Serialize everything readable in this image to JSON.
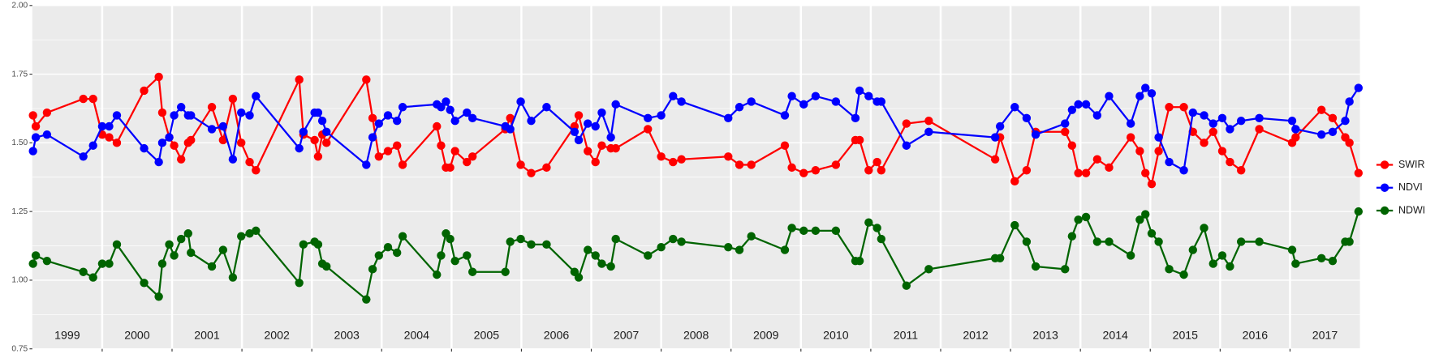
{
  "chart_data": {
    "type": "line",
    "xlim": [
      1999,
      2018
    ],
    "ylim": [
      0.75,
      2.0
    ],
    "yticks": [
      {
        "value": 0.75,
        "label": "0.75"
      },
      {
        "value": 1.0,
        "label": "1.00"
      },
      {
        "value": 1.25,
        "label": "1.25"
      },
      {
        "value": 1.5,
        "label": "1.50"
      },
      {
        "value": 1.75,
        "label": "1.75"
      },
      {
        "value": 2.0,
        "label": "2.00"
      }
    ],
    "xticks": [
      {
        "value": 1999.5,
        "label": "1999"
      },
      {
        "value": 2000.5,
        "label": "2000"
      },
      {
        "value": 2001.5,
        "label": "2001"
      },
      {
        "value": 2002.5,
        "label": "2002"
      },
      {
        "value": 2003.5,
        "label": "2003"
      },
      {
        "value": 2004.5,
        "label": "2004"
      },
      {
        "value": 2005.5,
        "label": "2005"
      },
      {
        "value": 2006.5,
        "label": "2006"
      },
      {
        "value": 2007.5,
        "label": "2007"
      },
      {
        "value": 2008.5,
        "label": "2008"
      },
      {
        "value": 2009.5,
        "label": "2009"
      },
      {
        "value": 2010.5,
        "label": "2010"
      },
      {
        "value": 2011.5,
        "label": "2011"
      },
      {
        "value": 2012.5,
        "label": "2012"
      },
      {
        "value": 2013.5,
        "label": "2013"
      },
      {
        "value": 2014.5,
        "label": "2014"
      },
      {
        "value": 2015.5,
        "label": "2015"
      },
      {
        "value": 2016.5,
        "label": "2016"
      },
      {
        "value": 2017.5,
        "label": "2017"
      }
    ],
    "x_gridlines": [
      2000,
      2001,
      2002,
      2003,
      2004,
      2005,
      2006,
      2007,
      2008,
      2009,
      2010,
      2011,
      2012,
      2013,
      2014,
      2015,
      2016,
      2017
    ],
    "grid": true,
    "legend": "right",
    "x": [
      1999.01,
      1999.05,
      1999.21,
      1999.73,
      1999.87,
      2000.0,
      2000.1,
      2000.21,
      2000.6,
      2000.81,
      2000.86,
      2000.96,
      2001.03,
      2001.13,
      2001.23,
      2001.27,
      2001.57,
      2001.73,
      2001.87,
      2001.99,
      2002.11,
      2002.2,
      2002.82,
      2002.88,
      2003.04,
      2003.09,
      2003.15,
      2003.21,
      2003.78,
      2003.87,
      2003.96,
      2004.09,
      2004.22,
      2004.3,
      2004.79,
      2004.85,
      2004.92,
      2004.98,
      2005.05,
      2005.22,
      2005.3,
      2005.77,
      2005.84,
      2005.99,
      2006.14,
      2006.36,
      2006.76,
      2006.82,
      2006.95,
      2007.06,
      2007.15,
      2007.28,
      2007.35,
      2007.81,
      2008.0,
      2008.17,
      2008.29,
      2008.96,
      2009.12,
      2009.29,
      2009.77,
      2009.87,
      2010.04,
      2010.21,
      2010.5,
      2010.78,
      2010.84,
      2010.97,
      2011.09,
      2011.15,
      2011.51,
      2011.83,
      2012.78,
      2012.85,
      2013.06,
      2013.23,
      2013.36,
      2013.78,
      2013.88,
      2013.97,
      2014.08,
      2014.24,
      2014.41,
      2014.72,
      2014.85,
      2014.93,
      2015.02,
      2015.12,
      2015.27,
      2015.48,
      2015.61,
      2015.77,
      2015.9,
      2016.03,
      2016.14,
      2016.3,
      2016.56,
      2017.03,
      2017.08,
      2017.45,
      2017.61,
      2017.79,
      2017.85,
      2017.98
    ],
    "series": [
      {
        "name": "SWIR",
        "color": "#ff0000",
        "values": [
          1.6,
          1.56,
          1.61,
          1.66,
          1.66,
          1.53,
          1.52,
          1.5,
          1.69,
          1.74,
          1.61,
          1.52,
          1.49,
          1.44,
          1.5,
          1.51,
          1.63,
          1.51,
          1.66,
          1.5,
          1.43,
          1.4,
          1.73,
          1.53,
          1.51,
          1.45,
          1.53,
          1.5,
          1.73,
          1.59,
          1.45,
          1.47,
          1.49,
          1.42,
          1.56,
          1.49,
          1.41,
          1.41,
          1.47,
          1.43,
          1.45,
          1.55,
          1.59,
          1.42,
          1.39,
          1.41,
          1.56,
          1.6,
          1.47,
          1.43,
          1.49,
          1.48,
          1.48,
          1.55,
          1.45,
          1.43,
          1.44,
          1.45,
          1.42,
          1.42,
          1.49,
          1.41,
          1.39,
          1.4,
          1.42,
          1.51,
          1.51,
          1.4,
          1.43,
          1.4,
          1.57,
          1.58,
          1.44,
          1.52,
          1.36,
          1.4,
          1.54,
          1.54,
          1.49,
          1.39,
          1.39,
          1.44,
          1.41,
          1.52,
          1.47,
          1.39,
          1.35,
          1.47,
          1.63,
          1.63,
          1.54,
          1.5,
          1.54,
          1.47,
          1.43,
          1.4,
          1.55,
          1.5,
          1.52,
          1.62,
          1.59,
          1.52,
          1.5,
          1.39
        ]
      },
      {
        "name": "NDVI",
        "color": "#0000ff",
        "values": [
          1.47,
          1.52,
          1.53,
          1.45,
          1.49,
          1.56,
          1.56,
          1.6,
          1.48,
          1.43,
          1.5,
          1.52,
          1.6,
          1.63,
          1.6,
          1.6,
          1.55,
          1.56,
          1.44,
          1.61,
          1.6,
          1.67,
          1.48,
          1.54,
          1.61,
          1.61,
          1.58,
          1.54,
          1.42,
          1.52,
          1.57,
          1.6,
          1.58,
          1.63,
          1.64,
          1.63,
          1.65,
          1.62,
          1.58,
          1.61,
          1.59,
          1.56,
          1.55,
          1.65,
          1.58,
          1.63,
          1.54,
          1.51,
          1.57,
          1.56,
          1.61,
          1.52,
          1.64,
          1.59,
          1.6,
          1.67,
          1.65,
          1.59,
          1.63,
          1.65,
          1.6,
          1.67,
          1.64,
          1.67,
          1.65,
          1.59,
          1.69,
          1.67,
          1.65,
          1.65,
          1.49,
          1.54,
          1.52,
          1.56,
          1.63,
          1.59,
          1.53,
          1.57,
          1.62,
          1.64,
          1.64,
          1.6,
          1.67,
          1.57,
          1.67,
          1.7,
          1.68,
          1.52,
          1.43,
          1.4,
          1.61,
          1.6,
          1.57,
          1.59,
          1.55,
          1.58,
          1.59,
          1.58,
          1.55,
          1.53,
          1.54,
          1.58,
          1.65,
          1.7
        ]
      },
      {
        "name": "NDWI",
        "color": "#006400",
        "values": [
          1.06,
          1.09,
          1.07,
          1.03,
          1.01,
          1.06,
          1.06,
          1.13,
          0.99,
          0.94,
          1.06,
          1.13,
          1.09,
          1.15,
          1.17,
          1.1,
          1.05,
          1.11,
          1.01,
          1.16,
          1.17,
          1.18,
          0.99,
          1.13,
          1.14,
          1.13,
          1.06,
          1.05,
          0.93,
          1.04,
          1.09,
          1.12,
          1.1,
          1.16,
          1.02,
          1.09,
          1.17,
          1.15,
          1.07,
          1.09,
          1.03,
          1.03,
          1.14,
          1.15,
          1.13,
          1.13,
          1.03,
          1.01,
          1.11,
          1.09,
          1.06,
          1.05,
          1.15,
          1.09,
          1.12,
          1.15,
          1.14,
          1.12,
          1.11,
          1.16,
          1.11,
          1.19,
          1.18,
          1.18,
          1.18,
          1.07,
          1.07,
          1.21,
          1.19,
          1.15,
          0.98,
          1.04,
          1.08,
          1.08,
          1.2,
          1.14,
          1.05,
          1.04,
          1.16,
          1.22,
          1.23,
          1.14,
          1.14,
          1.09,
          1.22,
          1.24,
          1.17,
          1.14,
          1.04,
          1.02,
          1.11,
          1.19,
          1.06,
          1.09,
          1.05,
          1.14,
          1.14,
          1.11,
          1.06,
          1.08,
          1.07,
          1.14,
          1.14,
          1.25
        ]
      }
    ]
  }
}
